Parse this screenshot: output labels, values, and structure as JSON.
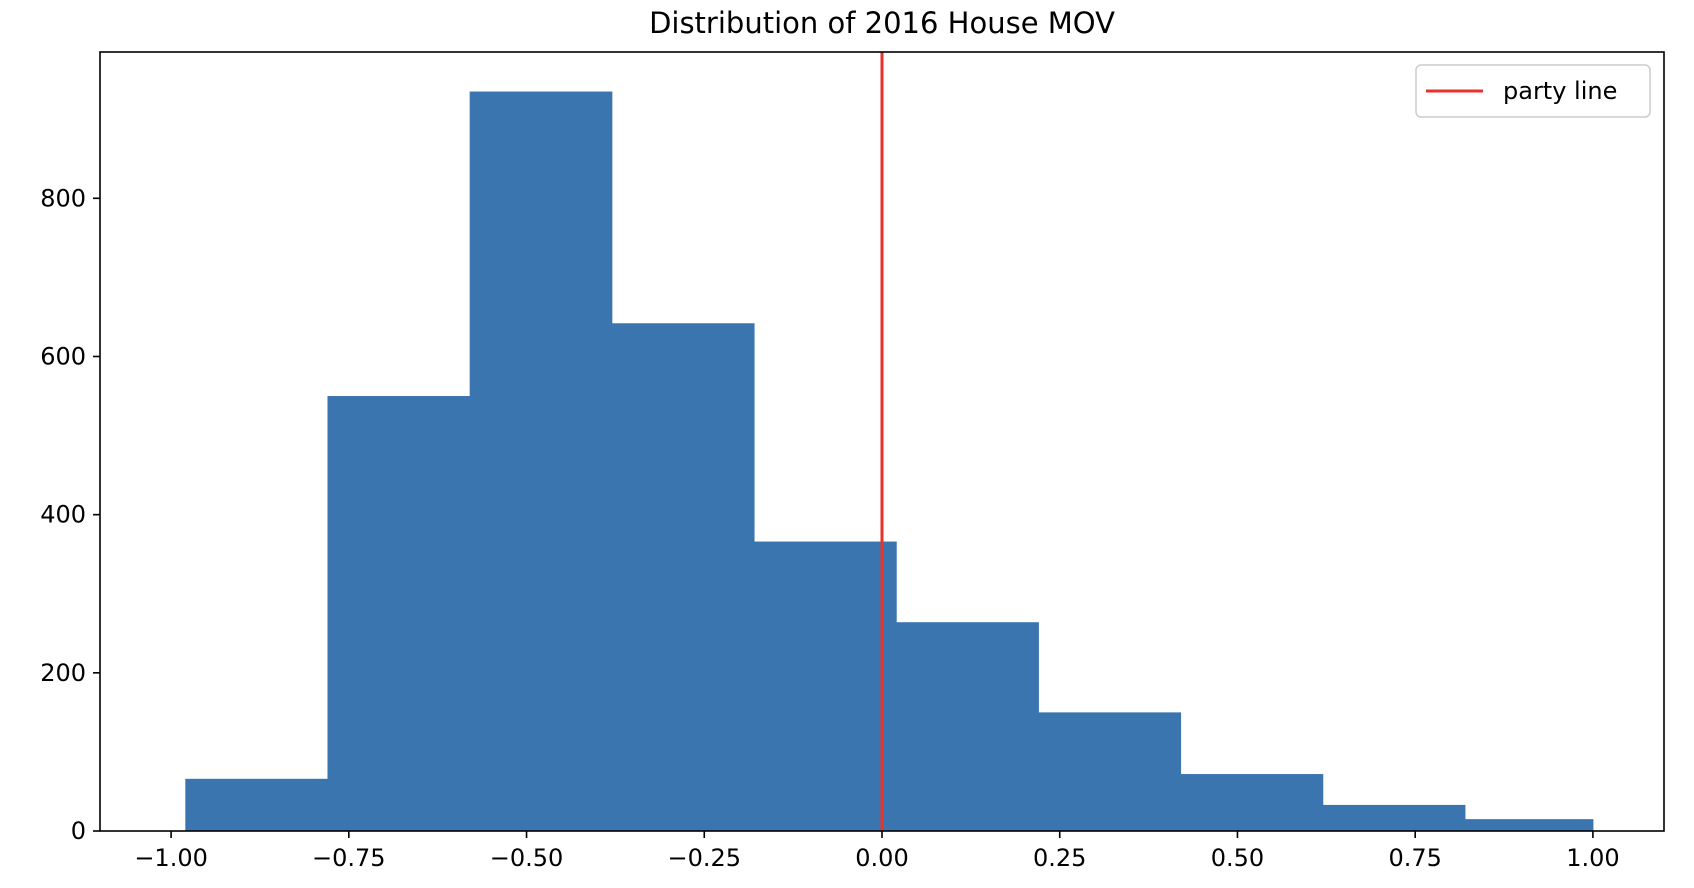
{
  "chart_data": {
    "type": "bar",
    "title": "Distribution of 2016 House MOV",
    "xlabel": "",
    "ylabel": "",
    "bin_edges": [
      -0.98,
      -0.78,
      -0.58,
      -0.38,
      -0.18,
      0.02,
      0.22,
      0.42,
      0.62,
      0.82,
      1.0
    ],
    "values": [
      66,
      550,
      935,
      642,
      366,
      264,
      150,
      72,
      33,
      15
    ],
    "xlim": [
      -1.1,
      1.1
    ],
    "ylim": [
      0,
      985
    ],
    "xticks": [
      -1.0,
      -0.75,
      -0.5,
      -0.25,
      0.0,
      0.25,
      0.5,
      0.75,
      1.0
    ],
    "xtick_labels": [
      "−1.00",
      "−0.75",
      "−0.50",
      "−0.25",
      "0.00",
      "0.25",
      "0.50",
      "0.75",
      "1.00"
    ],
    "yticks": [
      0,
      200,
      400,
      600,
      800
    ],
    "ytick_labels": [
      "0",
      "200",
      "400",
      "600",
      "800"
    ],
    "bar_color": "#3a75af",
    "vline": {
      "x": 0.0,
      "label": "party line",
      "color": "#e8322b"
    },
    "legend": {
      "placement": "top-right",
      "entries": [
        "party line"
      ]
    },
    "grid": false
  }
}
